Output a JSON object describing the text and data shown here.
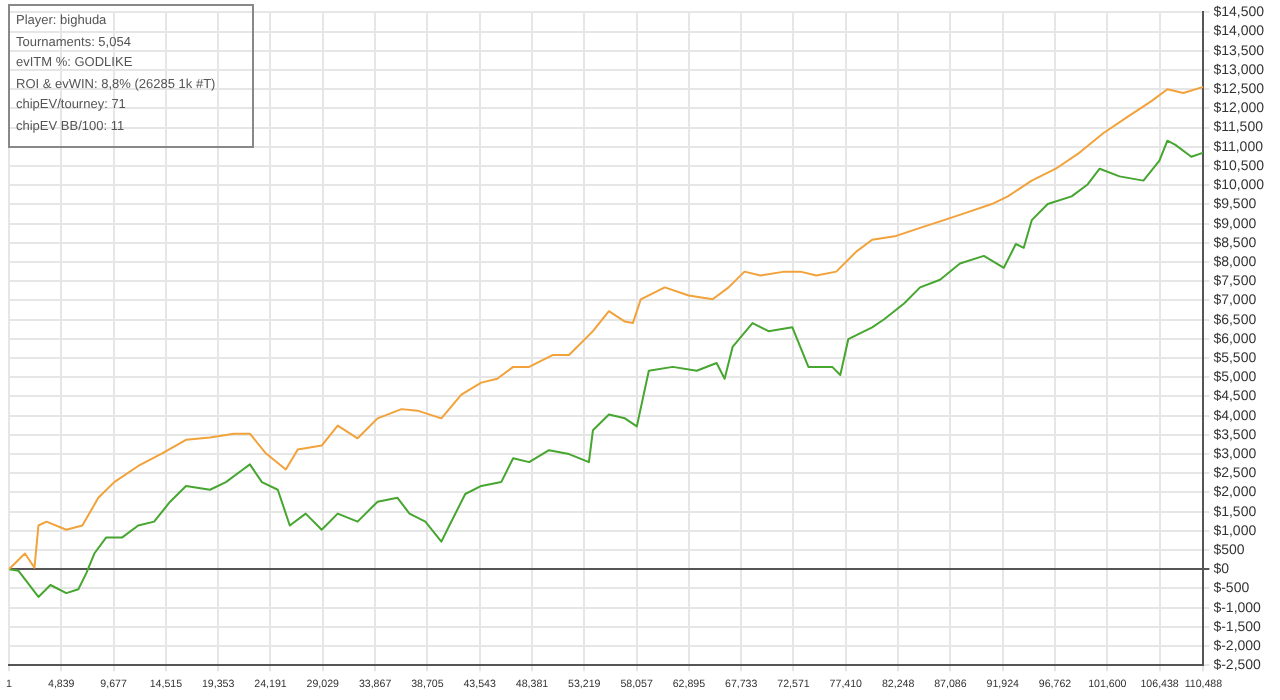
{
  "chart_data": {
    "type": "line",
    "annotations": [
      "Player: bighuda",
      "Tournaments: 5,054",
      "evITM %: GODLIKE",
      "ROI & evWIN: 8,8% (26285 1k #T)",
      "chipEV/tourney: 71",
      "chipEV BB/100: 11"
    ],
    "grid": true,
    "marker": "none",
    "line_style": "solid",
    "xlim": [
      1,
      110488
    ],
    "xticks": [
      1,
      {
        "value": 4839,
        "label": "4,839"
      },
      {
        "value": 9677,
        "label": "9,677"
      },
      {
        "value": 14515,
        "label": "14,515"
      },
      {
        "value": 19353,
        "label": "19,353"
      },
      {
        "value": 24191,
        "label": "24,191"
      },
      {
        "value": 29029,
        "label": "29,029"
      },
      {
        "value": 33867,
        "label": "33,867"
      },
      {
        "value": 38705,
        "label": "38,705"
      },
      {
        "value": 43543,
        "label": "43,543"
      },
      {
        "value": 48381,
        "label": "48,381"
      },
      {
        "value": 53219,
        "label": "53,219"
      },
      {
        "value": 58057,
        "label": "58,057"
      },
      {
        "value": 62895,
        "label": "62,895"
      },
      {
        "value": 67733,
        "label": "67,733"
      },
      {
        "value": 72571,
        "label": "72,571"
      },
      {
        "value": 77410,
        "label": "77,410"
      },
      {
        "value": 82248,
        "label": "82,248"
      },
      {
        "value": 87086,
        "label": "87,086"
      },
      {
        "value": 91924,
        "label": "91,924"
      },
      {
        "value": 96762,
        "label": "96,762"
      },
      {
        "value": 101600,
        "label": "101,600"
      },
      {
        "value": 106438,
        "label": "106,438"
      },
      {
        "value": 110488,
        "label": "110,488"
      }
    ],
    "ylim": [
      -2500,
      14500
    ],
    "yticks": [
      {
        "value": -2500,
        "label": "$-2,500"
      },
      {
        "value": -2000,
        "label": "$-2,000"
      },
      {
        "value": -1500,
        "label": "$-1,500"
      },
      {
        "value": -1000,
        "label": "$-1,000"
      },
      {
        "value": -500,
        "label": "$-500"
      },
      {
        "value": 0,
        "label": "$0"
      },
      {
        "value": 500,
        "label": "$500"
      },
      {
        "value": 1000,
        "label": "$1,000"
      },
      {
        "value": 1500,
        "label": "$1,500"
      },
      {
        "value": 2000,
        "label": "$2,000"
      },
      {
        "value": 2500,
        "label": "$2,500"
      },
      {
        "value": 3000,
        "label": "$3,000"
      },
      {
        "value": 3500,
        "label": "$3,500"
      },
      {
        "value": 4000,
        "label": "$4,000"
      },
      {
        "value": 4500,
        "label": "$4,500"
      },
      {
        "value": 5000,
        "label": "$5,000"
      },
      {
        "value": 5500,
        "label": "$5,500"
      },
      {
        "value": 6000,
        "label": "$6,000"
      },
      {
        "value": 6500,
        "label": "$6,500"
      },
      {
        "value": 7000,
        "label": "$7,000"
      },
      {
        "value": 7500,
        "label": "$7,500"
      },
      {
        "value": 8000,
        "label": "$8,000"
      },
      {
        "value": 8500,
        "label": "$8,500"
      },
      {
        "value": 9000,
        "label": "$9,000"
      },
      {
        "value": 9500,
        "label": "$9,500"
      },
      {
        "value": 10000,
        "label": "$10,000"
      },
      {
        "value": 10500,
        "label": "$10,500"
      },
      {
        "value": 11000,
        "label": "$11,000"
      },
      {
        "value": 11500,
        "label": "$11,500"
      },
      {
        "value": 12000,
        "label": "$12,000"
      },
      {
        "value": 12500,
        "label": "$12,500"
      },
      {
        "value": 13000,
        "label": "$13,000"
      },
      {
        "value": 13500,
        "label": "$13,500"
      },
      {
        "value": 14000,
        "label": "$14,000"
      },
      {
        "value": 14500,
        "label": "$14,500"
      }
    ],
    "series": [
      {
        "color": "#f2a23a",
        "x": [
          1,
          1480,
          2360,
          2730,
          3470,
          5310,
          6790,
          8270,
          9740,
          11960,
          14170,
          16380,
          18600,
          20810,
          22290,
          23760,
          25610,
          26720,
          28930,
          30410,
          32250,
          34100,
          36310,
          37790,
          40000,
          41850,
          43690,
          45170,
          46640,
          48120,
          50330,
          51810,
          54020,
          55500,
          56970,
          57710,
          58450,
          60660,
          62880,
          65090,
          66570,
          68040,
          69520,
          71730,
          73210,
          74690,
          76530,
          78380,
          79850,
          82070,
          84280,
          86490,
          88710,
          90920,
          92400,
          94610,
          96830,
          99040,
          101250,
          103470,
          105680,
          107160,
          108630,
          110488
        ],
        "values": [
          0,
          410,
          40,
          1140,
          1240,
          1030,
          1140,
          1860,
          2270,
          2690,
          3020,
          3370,
          3430,
          3530,
          3530,
          3020,
          2600,
          3120,
          3220,
          3740,
          3410,
          3930,
          4170,
          4130,
          3930,
          4550,
          4860,
          4960,
          5270,
          5270,
          5580,
          5580,
          6200,
          6720,
          6450,
          6410,
          7030,
          7340,
          7130,
          7030,
          7340,
          7750,
          7650,
          7750,
          7750,
          7650,
          7750,
          8270,
          8580,
          8680,
          8890,
          9090,
          9300,
          9510,
          9710,
          10120,
          10430,
          10850,
          11360,
          11780,
          12190,
          12500,
          12400,
          12560
        ]
      },
      {
        "color": "#46a630",
        "x": [
          1,
          890,
          2730,
          3840,
          5310,
          6420,
          7160,
          7900,
          9000,
          10480,
          11960,
          13430,
          14910,
          16380,
          18600,
          20070,
          21550,
          22290,
          23400,
          24870,
          25980,
          27450,
          28930,
          30410,
          32250,
          34100,
          35940,
          37050,
          38520,
          40000,
          40740,
          42210,
          43690,
          45540,
          46640,
          48120,
          49960,
          51810,
          53650,
          54020,
          55500,
          56970,
          58080,
          59190,
          61400,
          63620,
          65460,
          66200,
          66940,
          68780,
          70260,
          72470,
          73950,
          76160,
          76900,
          77640,
          79850,
          80960,
          82800,
          84280,
          86130,
          87970,
          90180,
          92030,
          93140,
          93870,
          94610,
          96090,
          98300,
          99780,
          100890,
          102730,
          104940,
          106420,
          107160,
          107900,
          109370,
          110488
        ],
        "values": [
          0,
          -40,
          -720,
          -410,
          -620,
          -520,
          -100,
          410,
          830,
          830,
          1140,
          1240,
          1760,
          2170,
          2070,
          2270,
          2580,
          2730,
          2270,
          2070,
          1140,
          1450,
          1030,
          1450,
          1240,
          1760,
          1860,
          1450,
          1240,
          720,
          1140,
          1960,
          2170,
          2270,
          2890,
          2790,
          3100,
          3000,
          2790,
          3620,
          4030,
          3930,
          3720,
          5170,
          5270,
          5170,
          5370,
          4960,
          5790,
          6410,
          6200,
          6300,
          5270,
          5270,
          5060,
          5990,
          6300,
          6510,
          6920,
          7340,
          7540,
          7960,
          8160,
          7850,
          8470,
          8370,
          9090,
          9510,
          9710,
          10020,
          10430,
          10230,
          10120,
          10640,
          11160,
          11050,
          10740,
          10850
        ]
      }
    ]
  }
}
